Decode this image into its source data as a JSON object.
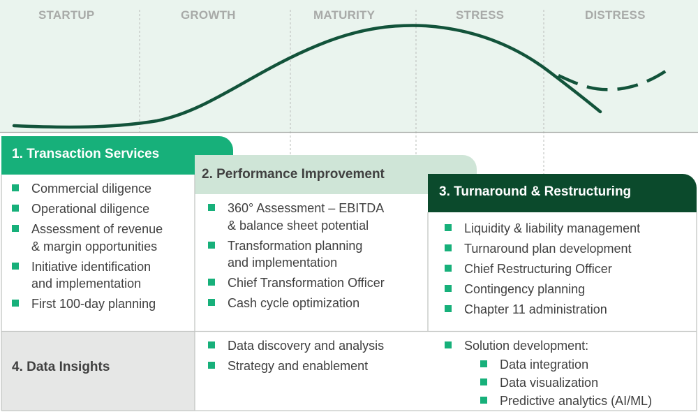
{
  "stages": [
    "STARTUP",
    "GROWTH",
    "MATURITY",
    "STRESS",
    "DISTRESS"
  ],
  "colors": {
    "top_band": "#eaf4ee",
    "curve": "#12533a",
    "transaction_tab": "#17b07a",
    "performance_tab": "#cfe5d7",
    "turnaround_tab": "#0b4a2c",
    "data_insights_bg": "#e6e7e6",
    "bullet": "#17b07a"
  },
  "transaction": {
    "title": "1. Transaction Services",
    "items": [
      [
        "Commercial diligence"
      ],
      [
        "Operational diligence"
      ],
      [
        "Assessment of revenue",
        "& margin opportunities"
      ],
      [
        "Initiative identification",
        "and implementation"
      ],
      [
        "First 100-day planning"
      ]
    ]
  },
  "performance": {
    "title": "2. Performance Improvement",
    "items": [
      [
        "360° Assessment – EBITDA",
        "& balance sheet potential"
      ],
      [
        "Transformation planning",
        "and implementation"
      ],
      [
        "Chief Transformation Officer"
      ],
      [
        "Cash cycle optimization"
      ]
    ]
  },
  "turnaround": {
    "title": "3. Turnaround & Restructuring",
    "items": [
      [
        "Liquidity & liability management"
      ],
      [
        "Turnaround plan development"
      ],
      [
        "Chief Restructuring Officer"
      ],
      [
        "Contingency planning"
      ],
      [
        "Chapter 11 administration"
      ]
    ]
  },
  "data_insights": {
    "title": "4. Data Insights",
    "col1": [
      "Data discovery and analysis",
      "Strategy and enablement"
    ],
    "col2_header": "Solution development:",
    "col2_items": [
      "Data integration",
      "Data visualization",
      "Predictive analytics (AI/ML)"
    ]
  }
}
